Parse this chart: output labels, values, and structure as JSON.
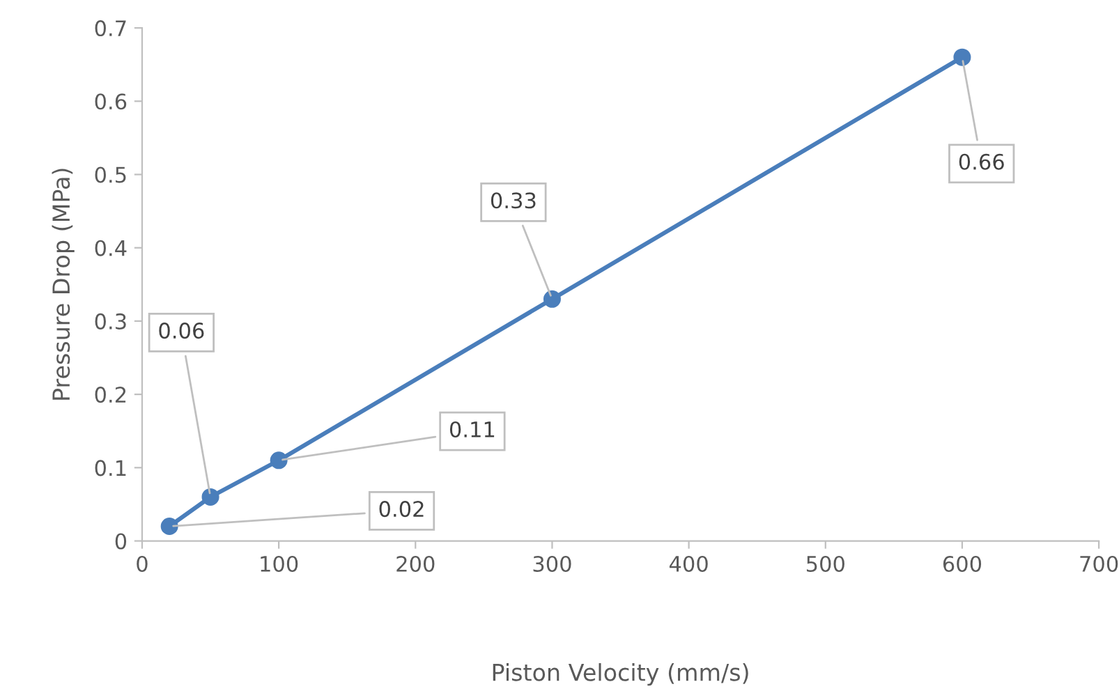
{
  "chart_data": {
    "type": "line",
    "xlabel": "Piston Velocity (mm/s)",
    "ylabel": "Pressure Drop (MPa)",
    "x": [
      20,
      50,
      100,
      300,
      600
    ],
    "series": [
      {
        "color": "#4a7ebb",
        "values": [
          0.02,
          0.06,
          0.11,
          0.33,
          0.66
        ]
      }
    ],
    "xlim": [
      0,
      700
    ],
    "xticks": [
      0,
      100,
      200,
      300,
      400,
      500,
      600,
      700
    ],
    "ylim": [
      0,
      0.7
    ],
    "yticks": [
      0,
      0.1,
      0.2,
      0.3,
      0.4,
      0.5,
      0.6,
      0.7
    ],
    "annotations": [
      {
        "text": "0.02",
        "x": 20,
        "y": 0.02
      },
      {
        "text": "0.06",
        "x": 50,
        "y": 0.06
      },
      {
        "text": "0.11",
        "x": 100,
        "y": 0.11
      },
      {
        "text": "0.33",
        "x": 300,
        "y": 0.33
      },
      {
        "text": "0.66",
        "x": 600,
        "y": 0.66
      }
    ],
    "marker": "circle",
    "line_style": "solid",
    "grid": false,
    "legend": false
  }
}
